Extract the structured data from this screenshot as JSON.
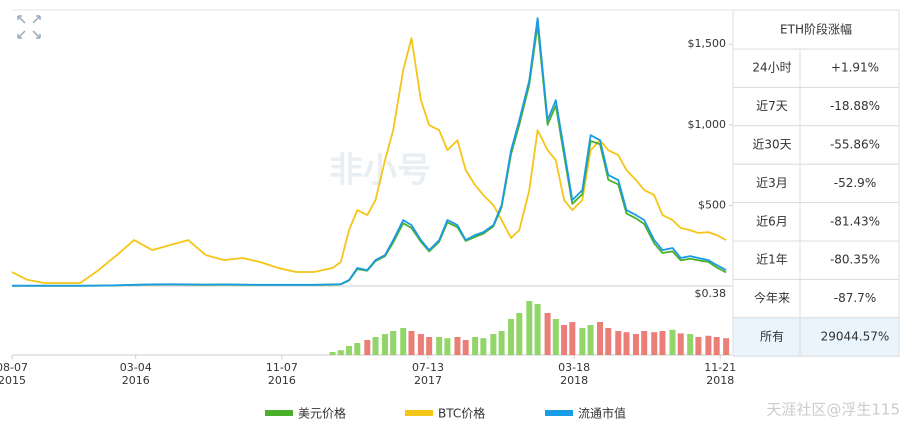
{
  "chart_data": {
    "type": "line",
    "watermark": "非小号",
    "x": [
      "2015-08-07",
      "2015-09-01",
      "2015-10-01",
      "2015-11-01",
      "2015-12-01",
      "2016-01-01",
      "2016-02-01",
      "2016-03-01",
      "2016-04-01",
      "2016-05-01",
      "2016-06-01",
      "2016-07-01",
      "2016-08-01",
      "2016-09-01",
      "2016-10-01",
      "2016-11-01",
      "2016-12-01",
      "2017-01-01",
      "2017-01-15",
      "2017-02-01",
      "2017-02-15",
      "2017-03-01",
      "2017-03-15",
      "2017-04-01",
      "2017-04-15",
      "2017-05-01",
      "2017-05-15",
      "2017-06-01",
      "2017-06-15",
      "2017-07-01",
      "2017-07-15",
      "2017-08-01",
      "2017-08-15",
      "2017-09-01",
      "2017-09-15",
      "2017-10-01",
      "2017-10-15",
      "2017-11-01",
      "2017-11-15",
      "2017-12-01",
      "2017-12-15",
      "2018-01-01",
      "2018-01-15",
      "2018-02-01",
      "2018-02-15",
      "2018-03-01",
      "2018-03-15",
      "2018-04-01",
      "2018-04-15",
      "2018-05-01",
      "2018-05-15",
      "2018-06-01",
      "2018-06-15",
      "2018-07-01",
      "2018-07-15",
      "2018-08-01",
      "2018-08-15",
      "2018-09-01",
      "2018-09-15",
      "2018-10-01",
      "2018-10-15",
      "2018-11-01",
      "2018-11-15",
      "2018-12-01"
    ],
    "series": [
      {
        "name": "美元价格",
        "color": "#4caf2a",
        "values": [
          1,
          1,
          1,
          1,
          1,
          2,
          4,
          7,
          9,
          10,
          9,
          8,
          9,
          8,
          7,
          7,
          7,
          7,
          8,
          9,
          11,
          34,
          105,
          95,
          155,
          185,
          270,
          390,
          360,
          275,
          215,
          275,
          395,
          365,
          280,
          305,
          325,
          370,
          490,
          820,
          1000,
          1250,
          1620,
          1000,
          1120,
          810,
          510,
          570,
          900,
          880,
          660,
          630,
          450,
          420,
          385,
          265,
          205,
          215,
          160,
          170,
          160,
          150,
          115,
          85
        ]
      },
      {
        "name": "BTC价格",
        "color": "#f5c518",
        "values": [
          87,
          40,
          19,
          19,
          19,
          99,
          192,
          285,
          223,
          254,
          285,
          192,
          161,
          174,
          149,
          112,
          87,
          87,
          99,
          112,
          149,
          347,
          471,
          440,
          533,
          781,
          967,
          1339,
          1538,
          1153,
          998,
          967,
          843,
          905,
          719,
          626,
          564,
          502,
          409,
          298,
          347,
          595,
          967,
          843,
          781,
          533,
          471,
          533,
          843,
          905,
          843,
          812,
          719,
          657,
          595,
          564,
          440,
          409,
          360,
          347,
          329,
          335,
          316,
          285
        ]
      },
      {
        "name": "流通市值",
        "color": "#1a9be6",
        "values": [
          2,
          2,
          2,
          2,
          2,
          3,
          5,
          8,
          10,
          11,
          10,
          9,
          10,
          9,
          8,
          8,
          8,
          8,
          9,
          10,
          12,
          37,
          112,
          99,
          161,
          192,
          285,
          409,
          378,
          285,
          223,
          285,
          409,
          378,
          285,
          316,
          335,
          378,
          502,
          843,
          1029,
          1277,
          1662,
          1029,
          1153,
          843,
          533,
          595,
          936,
          905,
          688,
          657,
          471,
          440,
          409,
          285,
          223,
          236,
          174,
          186,
          174,
          161,
          130,
          99
        ]
      }
    ],
    "volume": {
      "up_color": "#7fcf4f",
      "down_color": "#e8675e",
      "axis": "y2",
      "values": [
        null,
        null,
        null,
        null,
        null,
        null,
        null,
        null,
        null,
        null,
        null,
        null,
        null,
        null,
        null,
        null,
        null,
        null,
        null,
        5,
        8,
        15,
        20,
        25,
        30,
        35,
        40,
        45,
        40,
        35,
        30,
        30,
        28,
        30,
        25,
        30,
        28,
        35,
        40,
        60,
        70,
        90,
        85,
        70,
        60,
        50,
        55,
        45,
        50,
        55,
        45,
        40,
        38,
        35,
        40,
        38,
        40,
        42,
        36,
        35,
        30,
        32,
        30,
        28
      ]
    },
    "xlim": [
      "2015-08-07",
      "2018-12-11"
    ],
    "xticks": [
      {
        "value": "2015-08-07",
        "label": [
          "08-07",
          "2015"
        ]
      },
      {
        "value": "2016-03-04",
        "label": [
          "03-04",
          "2016"
        ]
      },
      {
        "value": "2016-11-07",
        "label": [
          "11-07",
          "2016"
        ]
      },
      {
        "value": "2017-07-13",
        "label": [
          "07-13",
          "2017"
        ]
      },
      {
        "value": "2018-03-18",
        "label": [
          "03-18",
          "2018"
        ]
      },
      {
        "value": "2018-11-21",
        "label": [
          "11-21",
          "2018"
        ]
      }
    ],
    "ylim": [
      0.38,
      1700
    ],
    "yticks": [
      {
        "value": 1500,
        "label": "$1,500"
      },
      {
        "value": 1000,
        "label": "$1,000"
      },
      {
        "value": 500,
        "label": "$500"
      },
      {
        "value": 0.38,
        "label": "$0.38"
      }
    ],
    "y2lim": [
      0,
      100
    ]
  },
  "table": {
    "title": "ETH阶段涨幅",
    "rows": [
      {
        "label": "24小时",
        "value": "+1.91%",
        "color": "#3aa52a"
      },
      {
        "label": "近7天",
        "value": "-18.88%",
        "color": "#e03a3a"
      },
      {
        "label": "近30天",
        "value": "-55.86%",
        "color": "#e03a3a"
      },
      {
        "label": "近3月",
        "value": "-52.9%",
        "color": "#e03a3a"
      },
      {
        "label": "近6月",
        "value": "-81.43%",
        "color": "#e03a3a"
      },
      {
        "label": "近1年",
        "value": "-80.35%",
        "color": "#e03a3a"
      },
      {
        "label": "今年来",
        "value": "-87.7%",
        "color": "#e03a3a"
      },
      {
        "label": "所有",
        "value": "29044.57%",
        "color": "#3aa52a"
      }
    ]
  },
  "footer": "天涯社区@浮生115"
}
